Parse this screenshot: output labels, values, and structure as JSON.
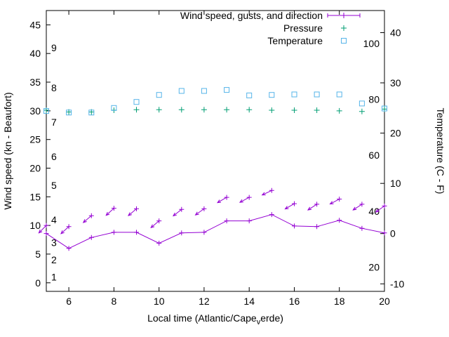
{
  "chart_data": {
    "type": "line",
    "title": "",
    "xlabel": "Local time (Atlantic/Capeverde)",
    "xlabel_parts": {
      "pre": "Local time (Atlantic/Cape",
      "sub": "v",
      "post": "erde)"
    },
    "ylabel_left": "Wind speed (kn - Beaufort)",
    "ylabel_right": "Temperature (C - F)",
    "xlim": [
      5,
      20
    ],
    "ylim_left": [
      -1.5,
      47.5
    ],
    "ylim_right": [
      -11.5,
      44.4
    ],
    "x_ticks": [
      6,
      8,
      10,
      12,
      14,
      16,
      18,
      20
    ],
    "y_left_ticks": [
      0,
      5,
      10,
      15,
      20,
      25,
      30,
      35,
      40,
      45
    ],
    "y_right_ticks": [
      -10,
      0,
      10,
      20,
      30,
      40
    ],
    "beaufort_labels": [
      {
        "label": "1",
        "kn": 1
      },
      {
        "label": "2",
        "kn": 4
      },
      {
        "label": "3",
        "kn": 7
      },
      {
        "label": "4",
        "kn": 11
      },
      {
        "label": "5",
        "kn": 17
      },
      {
        "label": "6",
        "kn": 22
      },
      {
        "label": "7",
        "kn": 28
      },
      {
        "label": "8",
        "kn": 34
      },
      {
        "label": "9",
        "kn": 41
      }
    ],
    "fahrenheit_labels": [
      {
        "label": "20",
        "c": -6.7
      },
      {
        "label": "40",
        "c": 4.4
      },
      {
        "label": "60",
        "c": 15.6
      },
      {
        "label": "80",
        "c": 26.7
      },
      {
        "label": "100",
        "c": 37.8
      }
    ],
    "grid": false,
    "legend_position": "top-right-inside",
    "legend": [
      {
        "key": "wind",
        "label": "Wind speed, gusts, and direction",
        "marker": "line-plus",
        "color": "#9400d3"
      },
      {
        "key": "pressure",
        "label": "Pressure",
        "marker": "plus",
        "color": "#009e73"
      },
      {
        "key": "temperature",
        "label": "Temperature",
        "marker": "square-open",
        "color": "#56b4e9"
      }
    ],
    "x": [
      5,
      6,
      7,
      8,
      9,
      10,
      11,
      12,
      13,
      14,
      15,
      16,
      17,
      18,
      19,
      20
    ],
    "series": [
      {
        "name": "wind_speed_kn",
        "axis": "left",
        "color": "#9400d3",
        "marker": "plus",
        "line": true,
        "values": [
          8.6,
          6.0,
          7.9,
          8.8,
          8.8,
          6.9,
          8.7,
          8.8,
          10.8,
          10.8,
          11.9,
          9.9,
          9.8,
          10.9,
          9.5,
          8.7
        ]
      },
      {
        "name": "wind_gust_kn",
        "axis": "left",
        "color": "#9400d3",
        "marker": "plus-arrow",
        "line": false,
        "values": [
          10.0,
          9.8,
          11.7,
          13.0,
          12.9,
          10.8,
          12.8,
          12.9,
          14.9,
          14.9,
          16.1,
          13.8,
          13.7,
          14.6,
          13.7,
          13.4
        ],
        "arrow_angles_deg": [
          225,
          222,
          220,
          222,
          220,
          220,
          218,
          215,
          210,
          208,
          205,
          210,
          213,
          208,
          213,
          215
        ]
      },
      {
        "name": "pressure_inhg",
        "axis": "left",
        "color": "#009e73",
        "marker": "plus",
        "line": false,
        "values": [
          30.1,
          29.8,
          29.8,
          30.1,
          30.2,
          30.2,
          30.2,
          30.2,
          30.2,
          30.2,
          30.1,
          30.1,
          30.1,
          30.0,
          29.9,
          30.3
        ]
      },
      {
        "name": "temperature_c",
        "axis": "right",
        "color": "#56b4e9",
        "marker": "square-open",
        "line": false,
        "values": [
          24.4,
          24.1,
          24.1,
          25.0,
          26.2,
          27.6,
          28.4,
          28.4,
          28.6,
          27.5,
          27.6,
          27.7,
          27.7,
          27.7,
          25.9,
          24.9
        ]
      }
    ]
  }
}
